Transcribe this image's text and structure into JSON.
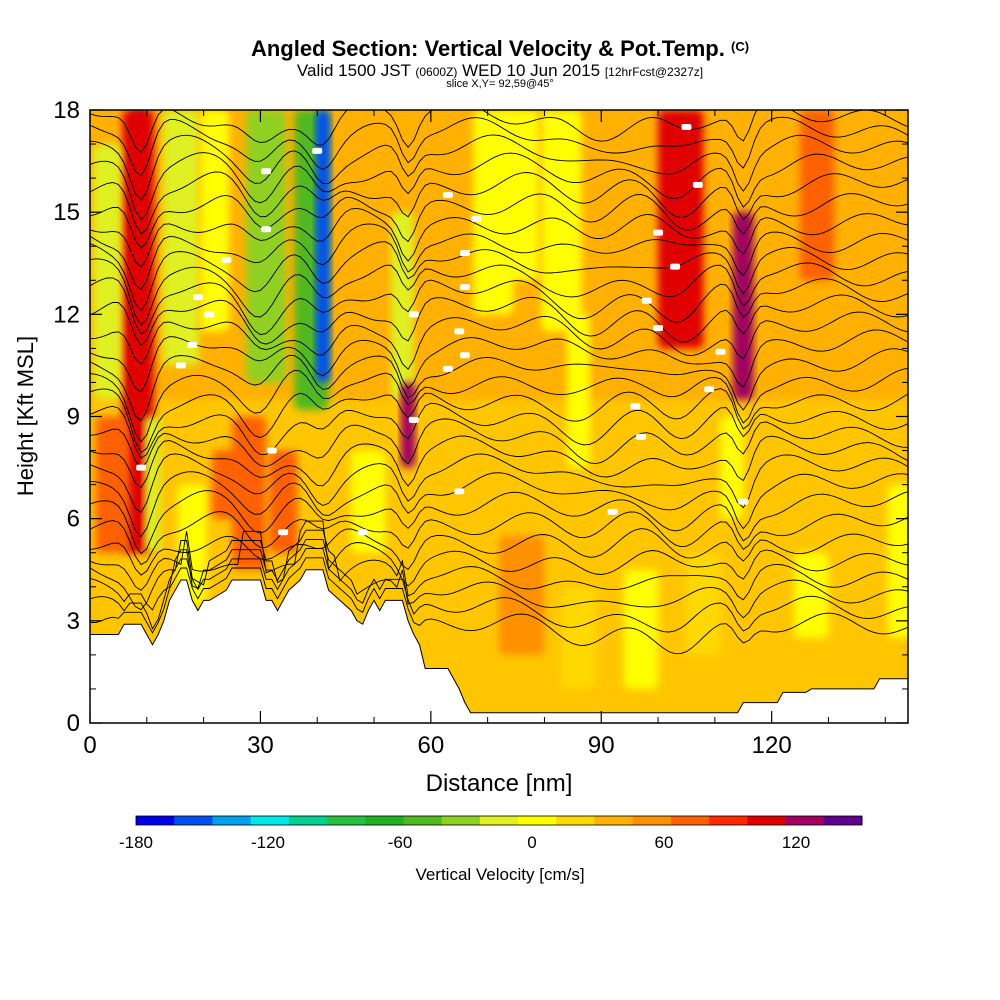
{
  "header": {
    "title": "Angled Section: Vertical Velocity & Pot.Temp.",
    "copyright": "(C)",
    "valid_prefix": "Valid 1500 JST",
    "valid_zulu": "(0600Z)",
    "valid_date": "WED 10 Jun 2015",
    "forecast": "[12hrFcst@2327z]",
    "slice": "slice X,Y= 92,59@45°"
  },
  "chart_data": {
    "type": "heatmap",
    "xlabel": "Distance [nm]",
    "ylabel": "Height [Kft MSL]",
    "x_ticks": [
      0,
      30,
      60,
      90,
      120
    ],
    "y_ticks": [
      0,
      3,
      6,
      9,
      12,
      15,
      18
    ],
    "xlim": [
      0,
      144
    ],
    "ylim": [
      0,
      18
    ],
    "grid": false,
    "colorbar": {
      "label": "Vertical Velocity [cm/s]",
      "tick_values": [
        -180,
        -120,
        -60,
        0,
        60,
        120
      ],
      "bin_edges": [
        -180,
        -165,
        -150,
        -135,
        -120,
        -105,
        -90,
        -75,
        -60,
        -45,
        -30,
        -15,
        0,
        15,
        30,
        45,
        60,
        75,
        90,
        105,
        120,
        135,
        150
      ],
      "colors": [
        "#0000e8",
        "#0050f0",
        "#00a0f0",
        "#00e8e8",
        "#00d090",
        "#28c040",
        "#20b020",
        "#50b820",
        "#90d020",
        "#e0f020",
        "#ffff00",
        "#ffd800",
        "#ffb000",
        "#ff9000",
        "#ff6000",
        "#ff2800",
        "#e00000",
        "#a00060",
        "#600090"
      ]
    },
    "terrain_kft": [
      [
        0,
        2.6
      ],
      [
        5,
        2.6
      ],
      [
        6,
        2.9
      ],
      [
        9,
        2.9
      ],
      [
        10,
        2.6
      ],
      [
        11,
        2.3
      ],
      [
        12,
        2.6
      ],
      [
        13,
        3.0
      ],
      [
        14,
        3.6
      ],
      [
        15,
        3.9
      ],
      [
        16,
        4.2
      ],
      [
        17,
        4.2
      ],
      [
        18,
        3.6
      ],
      [
        19,
        3.3
      ],
      [
        20,
        3.6
      ],
      [
        21,
        3.6
      ],
      [
        24,
        3.9
      ],
      [
        25,
        4.2
      ],
      [
        30,
        4.2
      ],
      [
        31,
        3.6
      ],
      [
        32,
        3.6
      ],
      [
        33,
        3.3
      ],
      [
        34,
        3.6
      ],
      [
        35,
        3.9
      ],
      [
        37,
        4.2
      ],
      [
        38,
        4.5
      ],
      [
        41,
        4.5
      ],
      [
        42,
        3.9
      ],
      [
        44,
        3.6
      ],
      [
        46,
        3.3
      ],
      [
        47,
        3.0
      ],
      [
        48,
        2.9
      ],
      [
        49,
        3.3
      ],
      [
        50,
        3.6
      ],
      [
        51,
        3.3
      ],
      [
        52,
        3.6
      ],
      [
        55,
        3.6
      ],
      [
        56,
        3.0
      ],
      [
        57,
        2.6
      ],
      [
        58,
        2.3
      ],
      [
        59,
        1.6
      ],
      [
        63,
        1.6
      ],
      [
        64,
        1.3
      ],
      [
        65,
        1.0
      ],
      [
        66,
        0.6
      ],
      [
        67,
        0.3
      ],
      [
        70,
        0.3
      ],
      [
        110,
        0.3
      ],
      [
        114,
        0.3
      ],
      [
        115,
        0.6
      ],
      [
        121,
        0.6
      ],
      [
        122,
        0.9
      ],
      [
        126,
        0.9
      ],
      [
        127,
        1.0
      ],
      [
        138,
        1.0
      ],
      [
        139,
        1.3
      ],
      [
        144,
        1.3
      ]
    ],
    "velocity_features": [
      {
        "x": 8.5,
        "y0": 6,
        "y1": 18,
        "w": 1.2,
        "v": 110
      },
      {
        "x": 8.5,
        "y0": 5,
        "y1": 18,
        "w": 2.8,
        "v": 65
      },
      {
        "x": 3,
        "y0": 9.5,
        "y1": 17,
        "w": 2.5,
        "v": -45
      },
      {
        "x": 11,
        "y0": 5,
        "y1": 9,
        "w": 1.5,
        "v": -45
      },
      {
        "x": 16,
        "y0": 10.5,
        "y1": 18,
        "w": 3.2,
        "v": -45
      },
      {
        "x": 18,
        "y0": 3.5,
        "y1": 7,
        "w": 2.5,
        "v": -20
      },
      {
        "x": 22,
        "y0": 11.5,
        "y1": 18,
        "w": 2.5,
        "v": -30
      },
      {
        "x": 24,
        "y0": 6,
        "y1": 8,
        "w": 2.5,
        "v": 30
      },
      {
        "x": 31,
        "y0": 10,
        "y1": 18,
        "w": 3.5,
        "v": -55
      },
      {
        "x": 34,
        "y0": 5,
        "y1": 8,
        "w": 2.5,
        "v": 40
      },
      {
        "x": 39,
        "y0": 9.2,
        "y1": 18,
        "w": 3.0,
        "v": -65
      },
      {
        "x": 41,
        "y0": 10,
        "y1": 18,
        "w": 1.3,
        "v": -160
      },
      {
        "x": 55,
        "y0": 9.5,
        "y1": 15,
        "w": 2.0,
        "v": -45
      },
      {
        "x": 56,
        "y0": 7.5,
        "y1": 10,
        "w": 1.3,
        "v": 85
      },
      {
        "x": 49,
        "y0": 5,
        "y1": 8,
        "w": 3.0,
        "v": -20
      },
      {
        "x": 71,
        "y0": 12,
        "y1": 18,
        "w": 3.5,
        "v": -25
      },
      {
        "x": 76,
        "y0": 13,
        "y1": 18,
        "w": 3.0,
        "v": -20
      },
      {
        "x": 83,
        "y0": 11.5,
        "y1": 18,
        "w": 3.5,
        "v": -25
      },
      {
        "x": 86,
        "y0": 7.5,
        "y1": 12,
        "w": 2.0,
        "v": -25
      },
      {
        "x": 76,
        "y0": 2,
        "y1": 5.5,
        "w": 4.0,
        "v": 25
      },
      {
        "x": 86,
        "y0": 1,
        "y1": 4,
        "w": 3.0,
        "v": -15
      },
      {
        "x": 97,
        "y0": 1,
        "y1": 4.5,
        "w": 3.0,
        "v": -20
      },
      {
        "x": 104,
        "y0": 11,
        "y1": 18,
        "w": 4.0,
        "v": 60
      },
      {
        "x": 115,
        "y0": 9.5,
        "y1": 15,
        "w": 1.8,
        "v": 85
      },
      {
        "x": 113,
        "y0": 6,
        "y1": 9,
        "w": 2.0,
        "v": -25
      },
      {
        "x": 108,
        "y0": 2,
        "y1": 5,
        "w": 3.0,
        "v": -15
      },
      {
        "x": 127,
        "y0": 2.5,
        "y1": 5,
        "w": 3.0,
        "v": -20
      },
      {
        "x": 128,
        "y0": 13,
        "y1": 18,
        "w": 3.0,
        "v": 30
      },
      {
        "x": 143,
        "y0": 2.5,
        "y1": 7,
        "w": 2.5,
        "v": -30
      },
      {
        "x": 4,
        "y0": 5,
        "y1": 9,
        "w": 3.0,
        "v": 35
      },
      {
        "x": 28,
        "y0": 4.5,
        "y1": 9,
        "w": 3.0,
        "v": 35
      }
    ],
    "pot_temp_isentropes": {
      "count": 30,
      "base_kft": 2.8,
      "spacing_kft": 0.52,
      "perturbations": [
        {
          "x": 9,
          "dy": -1.4,
          "w": 2.5
        },
        {
          "x": 30,
          "dy": -0.9,
          "w": 4.0
        },
        {
          "x": 41,
          "dy": -0.7,
          "w": 3.0
        },
        {
          "x": 56,
          "dy": -0.9,
          "w": 2.0
        },
        {
          "x": 88,
          "dy": -0.5,
          "w": 6.0
        },
        {
          "x": 104,
          "dy": -0.6,
          "w": 5.0
        },
        {
          "x": 115,
          "dy": -1.0,
          "w": 2.0
        }
      ],
      "labeled_positions": [
        [
          9,
          7.5
        ],
        [
          16,
          10.5
        ],
        [
          18,
          11.1
        ],
        [
          21,
          12.0
        ],
        [
          19,
          12.5
        ],
        [
          24,
          13.6
        ],
        [
          31,
          14.5
        ],
        [
          31,
          16.2
        ],
        [
          40,
          16.8
        ],
        [
          32,
          8.0
        ],
        [
          34,
          5.6
        ],
        [
          48,
          5.6
        ],
        [
          57,
          8.9
        ],
        [
          57,
          12.0
        ],
        [
          63,
          10.4
        ],
        [
          65,
          6.8
        ],
        [
          65,
          11.5
        ],
        [
          66,
          10.8
        ],
        [
          66,
          12.8
        ],
        [
          66,
          13.8
        ],
        [
          68,
          14.8
        ],
        [
          63,
          15.5
        ],
        [
          92,
          6.2
        ],
        [
          96,
          9.3
        ],
        [
          97,
          8.4
        ],
        [
          98,
          12.4
        ],
        [
          100,
          14.4
        ],
        [
          100,
          11.6
        ],
        [
          103,
          13.4
        ],
        [
          105,
          17.5
        ],
        [
          107,
          15.8
        ],
        [
          111,
          10.9
        ],
        [
          109,
          9.8
        ],
        [
          115,
          6.5
        ]
      ]
    }
  }
}
